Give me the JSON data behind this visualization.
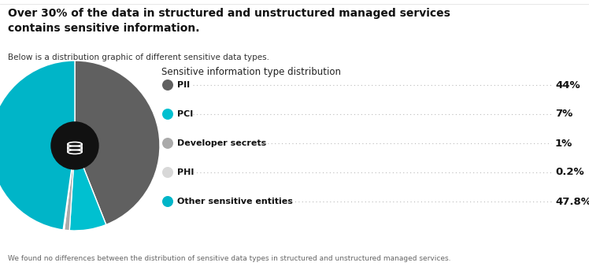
{
  "title_bold": "Over 30% of the data in structured and unstructured managed services\ncontains sensitive information.",
  "subtitle": "Below is a distribution graphic of different sensitive data types.",
  "chart_title": "Sensitive information type distribution",
  "footer": "We found no differences between the distribution of sensitive data types in structured and unstructured managed services.",
  "labels": [
    "PII",
    "PCI",
    "Developer secrets",
    "PHI",
    "Other sensitive entities"
  ],
  "values": [
    44.0,
    7.0,
    1.0,
    0.2,
    47.8
  ],
  "pct_labels": [
    "44%",
    "7%",
    "1%",
    "0.2%",
    "47.8%"
  ],
  "colors": [
    "#606060",
    "#00C0D0",
    "#aaaaaa",
    "#d8d8d8",
    "#00B5C8"
  ],
  "background": "#ffffff"
}
